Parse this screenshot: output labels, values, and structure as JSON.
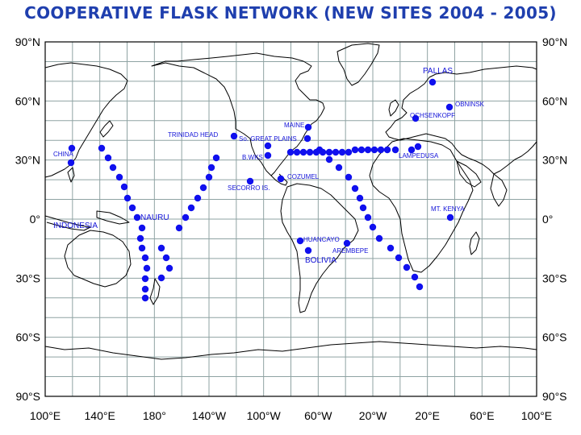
{
  "title": "COOPERATIVE FLASK NETWORK (NEW SITES 2004 - 2005)",
  "colors": {
    "title": "#1f3fae",
    "marker": "#1010ee",
    "label": "#1414d8",
    "grid": "#8fa3a3",
    "land": "#000000"
  },
  "lat_ticks": [
    "90°N",
    "60°N",
    "30°N",
    "0°",
    "30°S",
    "60°S",
    "90°S"
  ],
  "lon_ticks": [
    "100°E",
    "140°E",
    "180°",
    "140°W",
    "100°W",
    "60°W",
    "20°W",
    "20°E",
    "60°E",
    "100°E"
  ],
  "site_labels": {
    "pallas": "PALLAS",
    "obninsk": "OBNINSK",
    "ochsenkopf": "OCHSENKOPF",
    "maine": "MAINE",
    "trinidad_head": "TRINIDAD HEAD",
    "great_plains": "So. GREAT PLAINS",
    "china": "CHINA",
    "lampedusa": "LAMPEDUSA",
    "bwks": "B.WKS",
    "cozumel": "COZUMEL",
    "secorro": "SECORRO IS.",
    "mt_kenya": "MT. KENYA",
    "nauru": "NAURU",
    "indonesia": "INDONESIA",
    "huancayo": "HUANCAYO",
    "bolivia": "BOLIVIA",
    "arembepe": "AREMBEPE"
  }
}
